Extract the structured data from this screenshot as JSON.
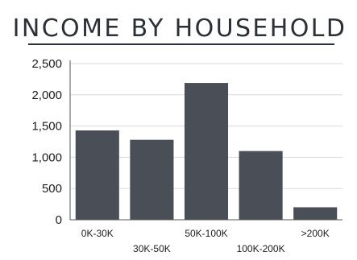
{
  "chart_data": {
    "type": "bar",
    "title": "INCOME BY HOUSEHOLD",
    "xlabel": "",
    "ylabel": "",
    "categories": [
      "0K-30K",
      "30K-50K",
      "50K-100K",
      "100K-200K",
      ">200K"
    ],
    "values": [
      1430,
      1280,
      2190,
      1100,
      200
    ],
    "ylim": [
      0,
      2500
    ],
    "yticks": [
      0,
      500,
      1000,
      1500,
      2000,
      2500
    ],
    "ytick_labels": [
      "0",
      "500",
      "1,000",
      "1,500",
      "2,000",
      "2,500"
    ],
    "grid": true,
    "legend": "none",
    "colors": {
      "bar": "#4a4e57",
      "title": "#2b2f36",
      "rule": "#2b2f36",
      "grid": "#d9d9d9",
      "axis": "#555555"
    }
  }
}
